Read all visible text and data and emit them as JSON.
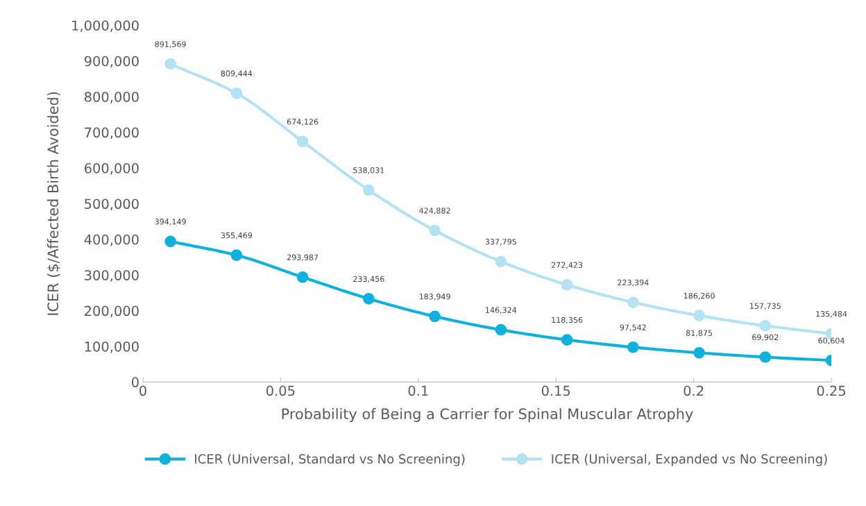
{
  "chart_data": {
    "type": "line",
    "xlabel": "Probability of Being a Carrier for Spinal Muscular Atrophy",
    "ylabel": "ICER ($/Affected Birth Avoided)",
    "x": [
      0.01,
      0.034,
      0.058,
      0.082,
      0.106,
      0.13,
      0.154,
      0.178,
      0.202,
      0.226,
      0.25
    ],
    "series": [
      {
        "name": "ICER (Universal, Standard vs No Screening)",
        "color": "#0fb0dc",
        "values": [
          394149,
          355469,
          293987,
          233456,
          183949,
          146324,
          118356,
          97542,
          81875,
          69902,
          60604
        ],
        "value_labels": [
          "394,149",
          "355,469",
          "293,987",
          "233,456",
          "183,949",
          "146,324",
          "118,356",
          "97,542",
          "81,875",
          "69,902",
          "60,604"
        ]
      },
      {
        "name": "ICER (Universal, Expanded vs No Screening)",
        "color": "#b3e2f3",
        "values": [
          891569,
          809444,
          674126,
          538031,
          424882,
          337795,
          272423,
          223394,
          186260,
          157735,
          135484
        ],
        "value_labels": [
          "891,569",
          "809,444",
          "674,126",
          "538,031",
          "424,882",
          "337,795",
          "272,423",
          "223,394",
          "186,260",
          "157,735",
          "135,484"
        ]
      }
    ],
    "xlim": [
      0,
      0.25
    ],
    "xticks": [
      0,
      0.05,
      0.1,
      0.15,
      0.2,
      0.25
    ],
    "ylim": [
      0,
      1000000
    ],
    "yticks": [
      {
        "value": 0,
        "label": "0"
      },
      {
        "value": 100000,
        "label": "100,000"
      },
      {
        "value": 200000,
        "label": "200,000"
      },
      {
        "value": 300000,
        "label": "300,000"
      },
      {
        "value": 400000,
        "label": "400,000"
      },
      {
        "value": 500000,
        "label": "500,000"
      },
      {
        "value": 600000,
        "label": "600,000"
      },
      {
        "value": 700000,
        "label": "700,000"
      },
      {
        "value": 800000,
        "label": "800,000"
      },
      {
        "value": 900000,
        "label": "900,000"
      },
      {
        "value": 1000000,
        "label": "1,000,000"
      }
    ],
    "legend": "bottom",
    "marker": "circle",
    "line_style": "solid"
  }
}
